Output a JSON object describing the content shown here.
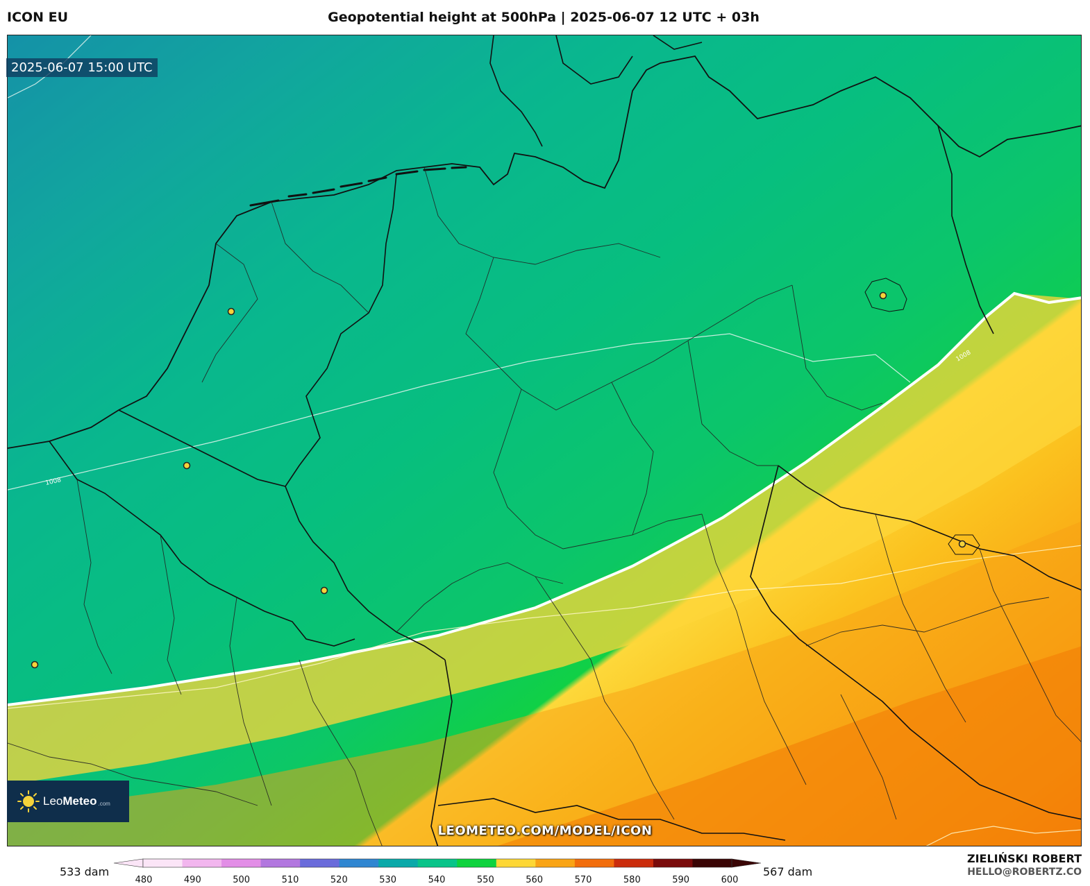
{
  "header": {
    "model": "ICON EU",
    "title": "Geopotential height at 500hPa | 2025-06-07 12 UTC + 03h"
  },
  "map": {
    "valid_time": "2025-06-07 15:00 UTC",
    "contour_label_a": "1008",
    "contour_label_b": "1008",
    "watermark": "LEOMETEO.COM/MODEL/ICON",
    "logo": {
      "brand_light": "Leo",
      "brand_bold": "Meteo",
      "domain": ".com"
    },
    "cities": [
      "amsterdam-marker",
      "brussels-marker",
      "luxembourg-marker",
      "paris-marker",
      "berlin-marker",
      "prague-marker"
    ]
  },
  "colorbar": {
    "min_label": "533 dam",
    "max_label": "567 dam",
    "ticks": [
      "480",
      "490",
      "500",
      "510",
      "520",
      "530",
      "540",
      "550",
      "560",
      "570",
      "580",
      "590",
      "600"
    ],
    "colors": [
      "#fbe5f7",
      "#f2b6ee",
      "#e28ee6",
      "#b277df",
      "#6a6bdb",
      "#2f86d1",
      "#0aa9a9",
      "#08c489",
      "#0ed33e",
      "#fdd735",
      "#f9a415",
      "#f26d0b",
      "#cb2c0c",
      "#7a0b0b",
      "#3a0505"
    ]
  },
  "footer": {
    "author": "ZIELIŃSKI ROBERT",
    "email": "HELLO@ROBERTZ.CO"
  }
}
